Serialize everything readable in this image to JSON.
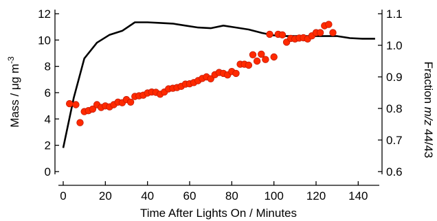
{
  "chart_data": {
    "type": "scatter",
    "xlabel": "Time After Lights On / Minutes",
    "ylabel_left": {
      "text": "Mass / ",
      "mu": "μ",
      "unit": "g m",
      "exponent": "-3"
    },
    "ylabel_right": {
      "prefix": "Fraction ",
      "italic": "m/z",
      "suffix": " 44/43"
    },
    "xlim": [
      -3,
      152
    ],
    "ylim_left": [
      -0.5,
      12
    ],
    "ylim_right": [
      0.59,
      1.1
    ],
    "x_ticks": [
      0,
      20,
      40,
      60,
      80,
      100,
      120,
      140
    ],
    "x_tick_labels": [
      "0",
      "20",
      "40",
      "60",
      "80",
      "100",
      "120",
      "140"
    ],
    "y_left_ticks": [
      0,
      2,
      4,
      6,
      8,
      10,
      12
    ],
    "y_left_tick_labels": [
      "0",
      "2",
      "4",
      "6",
      "8",
      "10",
      "12"
    ],
    "y_right_ticks": [
      0.6,
      0.7,
      0.8,
      0.9,
      1.0,
      1.1
    ],
    "y_right_tick_labels": [
      "0.6",
      "0.7",
      "0.8",
      "0.9",
      "1.0",
      "1.1"
    ],
    "grid": false,
    "series": [
      {
        "kind": "line",
        "axis": "left",
        "color": "#000000",
        "x": [
          0,
          5,
          10,
          16,
          22,
          28,
          34,
          40,
          46,
          52,
          58,
          64,
          70,
          76,
          82,
          88,
          94,
          100,
          106,
          112,
          118,
          124,
          130,
          136,
          142,
          148
        ],
        "y": [
          1.8,
          5.6,
          8.6,
          9.8,
          10.4,
          10.7,
          11.35,
          11.35,
          11.3,
          11.25,
          11.1,
          10.95,
          10.9,
          11.1,
          10.95,
          10.8,
          10.55,
          10.35,
          10.3,
          10.3,
          10.3,
          10.3,
          10.3,
          10.15,
          10.1,
          10.1
        ]
      },
      {
        "kind": "scatter",
        "axis": "right",
        "color": "#ff2a00",
        "x": [
          3,
          6,
          8,
          10,
          12,
          14,
          16,
          18,
          20,
          22,
          24,
          26,
          28,
          30,
          32,
          34,
          36,
          38,
          40,
          42,
          44,
          46,
          48,
          50,
          52,
          54,
          56,
          58,
          60,
          62,
          64,
          66,
          68,
          70,
          72,
          74,
          76,
          78,
          80,
          82,
          84,
          86,
          88,
          90,
          92,
          94,
          96,
          98,
          100,
          102,
          104,
          106,
          108,
          110,
          112,
          114,
          116,
          118,
          120,
          122,
          124,
          126,
          128
        ],
        "y": [
          0.815,
          0.812,
          0.755,
          0.79,
          0.793,
          0.798,
          0.812,
          0.803,
          0.808,
          0.805,
          0.812,
          0.82,
          0.818,
          0.828,
          0.82,
          0.838,
          0.84,
          0.842,
          0.849,
          0.852,
          0.851,
          0.845,
          0.852,
          0.862,
          0.864,
          0.866,
          0.87,
          0.877,
          0.878,
          0.882,
          0.888,
          0.895,
          0.9,
          0.894,
          0.907,
          0.914,
          0.911,
          0.906,
          0.917,
          0.911,
          0.94,
          0.94,
          0.937,
          0.97,
          0.95,
          0.972,
          0.955,
          1.035,
          0.963,
          1.035,
          1.033,
          1.01,
          1.022,
          1.02,
          1.023,
          1.024,
          1.02,
          1.03,
          1.04,
          1.04,
          1.062,
          1.066,
          1.04
        ]
      }
    ]
  }
}
